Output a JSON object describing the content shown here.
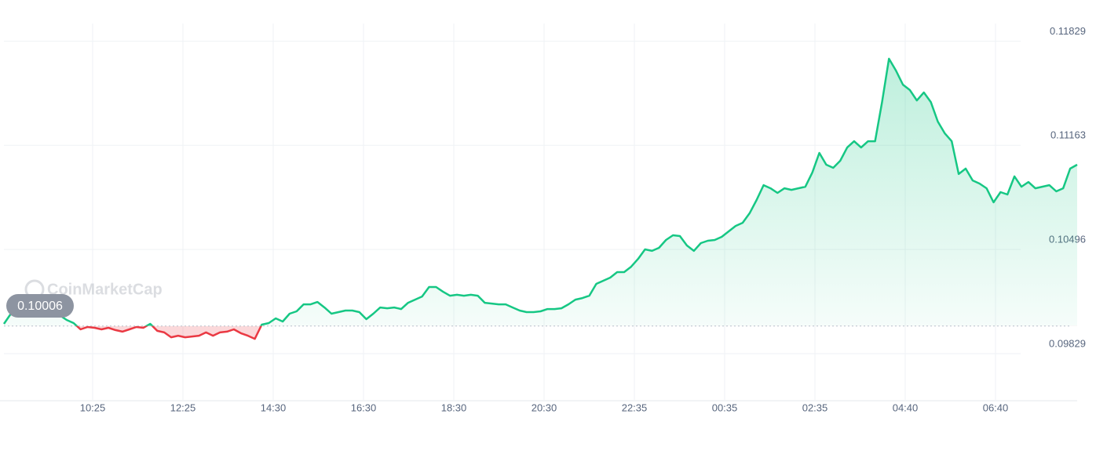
{
  "chart_data": {
    "type": "line",
    "watermark": "CoinMarketCap",
    "baseline": 0.10006,
    "up_color": "#16c784",
    "down_color": "#ea3943",
    "xtick_labels": [
      "10:25",
      "12:25",
      "14:30",
      "16:30",
      "18:30",
      "20:30",
      "22:35",
      "00:35",
      "02:35",
      "04:40",
      "06:40"
    ],
    "ylim": [
      0.09533,
      0.12093
    ],
    "yticks": [
      0.09829,
      0.10496,
      0.11163,
      0.11829
    ],
    "grid": true,
    "values": [
      0.1002,
      0.10085,
      0.10145,
      0.10175,
      0.10185,
      0.10195,
      0.10185,
      0.10125,
      0.10075,
      0.10045,
      0.10025,
      0.09985,
      0.1,
      0.09995,
      0.09985,
      0.09995,
      0.0998,
      0.0997,
      0.09985,
      0.1,
      0.09995,
      0.1002,
      0.09975,
      0.09965,
      0.09934,
      0.09944,
      0.09934,
      0.09939,
      0.09944,
      0.09965,
      0.09944,
      0.09965,
      0.0997,
      0.09985,
      0.0996,
      0.09944,
      0.09924,
      0.10015,
      0.10025,
      0.10055,
      0.10035,
      0.10085,
      0.101,
      0.10145,
      0.10145,
      0.1016,
      0.10125,
      0.10085,
      0.10095,
      0.10105,
      0.10105,
      0.10095,
      0.1005,
      0.10085,
      0.10125,
      0.1012,
      0.10125,
      0.10115,
      0.10155,
      0.10175,
      0.10195,
      0.10256,
      0.10256,
      0.10226,
      0.102,
      0.10206,
      0.102,
      0.10206,
      0.102,
      0.10155,
      0.1015,
      0.10145,
      0.10145,
      0.10125,
      0.10105,
      0.10095,
      0.10095,
      0.101,
      0.10115,
      0.10115,
      0.1012,
      0.10145,
      0.10175,
      0.10185,
      0.102,
      0.10276,
      0.10296,
      0.10316,
      0.10351,
      0.10351,
      0.10386,
      0.10436,
      0.10497,
      0.10487,
      0.10507,
      0.10557,
      0.10587,
      0.10582,
      0.10522,
      0.10487,
      0.10537,
      0.10552,
      0.10557,
      0.10577,
      0.10612,
      0.10647,
      0.10667,
      0.10728,
      0.10813,
      0.10908,
      0.10888,
      0.10858,
      0.10888,
      0.10878,
      0.10888,
      0.10898,
      0.10989,
      0.11114,
      0.11039,
      0.11019,
      0.11064,
      0.11149,
      0.11189,
      0.11149,
      0.11189,
      0.11189,
      0.1144,
      0.11717,
      0.11641,
      0.11551,
      0.11516,
      0.1145,
      0.11501,
      0.1144,
      0.11315,
      0.1124,
      0.11189,
      0.10979,
      0.11014,
      0.10938,
      0.10918,
      0.10888,
      0.10798,
      0.10863,
      0.10848,
      0.10964,
      0.10898,
      0.10928,
      0.10888,
      0.10898,
      0.10908,
      0.10868,
      0.10888,
      0.11014,
      0.11039
    ]
  }
}
